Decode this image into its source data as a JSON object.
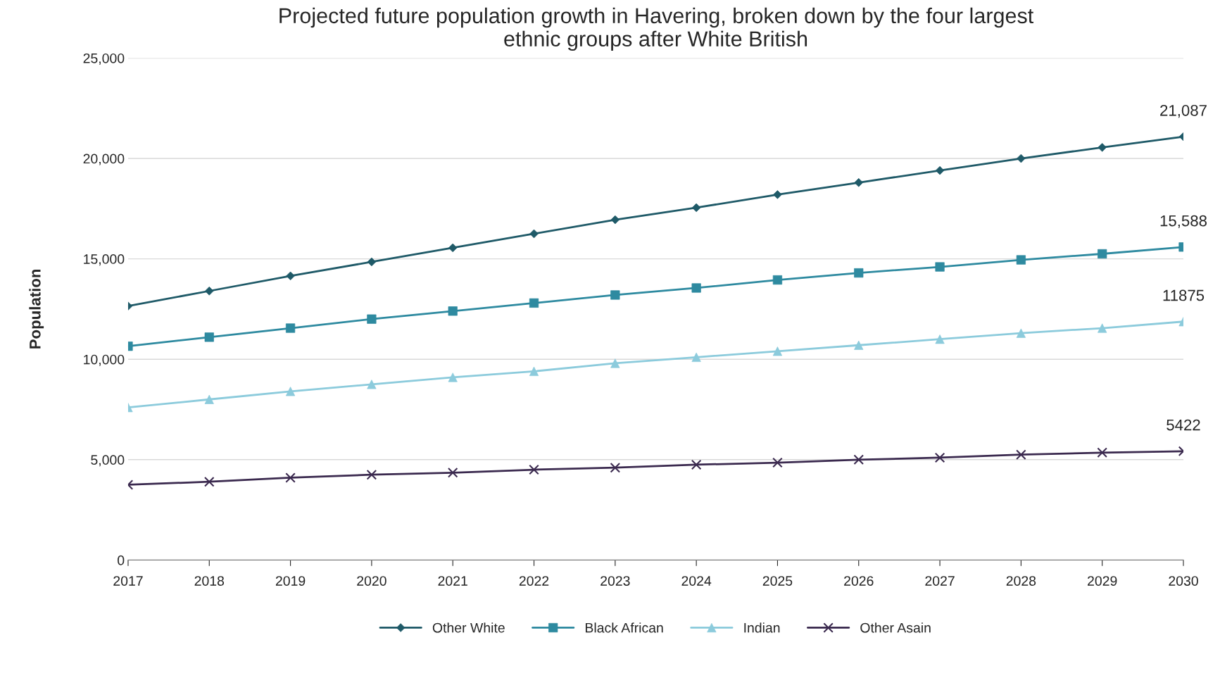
{
  "chart_data": {
    "type": "line",
    "title": "Projected future population growth in Havering, broken down by the four largest\nethnic groups after White British",
    "ylabel": "Population",
    "categories": [
      "2017",
      "2018",
      "2019",
      "2020",
      "2021",
      "2022",
      "2023",
      "2024",
      "2025",
      "2026",
      "2027",
      "2028",
      "2029",
      "2030"
    ],
    "series": [
      {
        "name": "Other White",
        "color": "#1f5a68",
        "marker": "diamond",
        "values": [
          12650,
          13400,
          14150,
          14850,
          15550,
          16250,
          16950,
          17550,
          18200,
          18800,
          19400,
          20000,
          20550,
          21087
        ],
        "value_labels": [
          null,
          null,
          null,
          null,
          null,
          null,
          null,
          null,
          null,
          null,
          null,
          null,
          null,
          "21,087"
        ]
      },
      {
        "name": "Black African",
        "color": "#2e8aa0",
        "marker": "square",
        "values": [
          10650,
          11100,
          11550,
          12000,
          12400,
          12800,
          13200,
          13550,
          13950,
          14300,
          14600,
          14950,
          15250,
          15588
        ],
        "value_labels": [
          null,
          null,
          null,
          null,
          null,
          null,
          null,
          null,
          null,
          null,
          null,
          null,
          null,
          "15,588"
        ]
      },
      {
        "name": "Indian",
        "color": "#8ccbdc",
        "marker": "triangle",
        "values": [
          7600,
          8000,
          8400,
          8750,
          9100,
          9400,
          9800,
          10100,
          10400,
          10700,
          11000,
          11300,
          11550,
          11875
        ],
        "value_labels": [
          null,
          null,
          null,
          null,
          null,
          null,
          null,
          null,
          null,
          null,
          null,
          null,
          null,
          "11875"
        ]
      },
      {
        "name": "Other Asain",
        "color": "#3b2a4f",
        "marker": "cross",
        "values": [
          3750,
          3900,
          4100,
          4250,
          4350,
          4500,
          4600,
          4750,
          4850,
          5000,
          5100,
          5250,
          5350,
          5422
        ],
        "value_labels": [
          null,
          null,
          null,
          null,
          null,
          null,
          null,
          null,
          null,
          null,
          null,
          null,
          null,
          "5422"
        ]
      }
    ],
    "ylim": [
      0,
      25000
    ],
    "yticks": [
      {
        "value": 0,
        "label": "0"
      },
      {
        "value": 5000,
        "label": "5,000"
      },
      {
        "value": 10000,
        "label": "10,000"
      },
      {
        "value": 15000,
        "label": "15,000"
      },
      {
        "value": 20000,
        "label": "20,000"
      },
      {
        "value": 25000,
        "label": "25,000"
      }
    ],
    "grid": "y",
    "legend": "bottom",
    "line_style": "solid"
  }
}
